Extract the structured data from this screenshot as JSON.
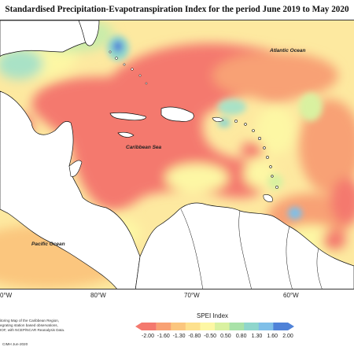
{
  "title": "Standardised Precipitation-Evapotranspiration Index for the period June 2019 to May 2020",
  "labels": {
    "atlantic": "Atlantic Ocean",
    "caribbean": "Caribbean Sea",
    "pacific": "Pacific Ocean"
  },
  "longitudes": [
    "0°W",
    "80°W",
    "70°W",
    "60°W"
  ],
  "legend": {
    "title": "SPEI Index",
    "ticks": [
      "-2.00",
      "-1.60",
      "-1.30",
      "-0.80",
      "-0.50",
      "0.50",
      "0.80",
      "1.30",
      "1.60",
      "2.00"
    ],
    "colors": [
      "#f4796e",
      "#f8a174",
      "#fbc67e",
      "#fde18e",
      "#fdf7a4",
      "#d9f1a0",
      "#a9e2a8",
      "#8fd6cc",
      "#7fbfe8",
      "#4f82d8"
    ]
  },
  "notes": {
    "line1": "itoring Map of the Caribbean Region,",
    "line2": "egrating station based observations,",
    "line3": "IOF, with NCEP/NCAR Reanalysis Data.",
    "credit": "CIMH Jun-2020"
  },
  "colors": {
    "dry": "#f4796e",
    "neutral": "#fdf7a4",
    "wet": "#7fbfe8"
  }
}
